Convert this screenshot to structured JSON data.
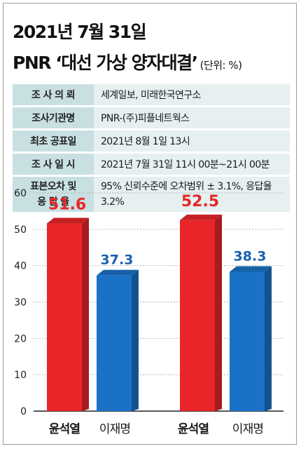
{
  "title": {
    "line1": "2021년 7월 31일",
    "line2": "PNR ‘대선 가상 양자대결’",
    "unit": "(단위: %)"
  },
  "info": [
    {
      "key": "조 사 의 뢰",
      "value": "세계일보, 미래한국연구소"
    },
    {
      "key": "조사기관명",
      "value": "PNR-(주)피플네트웍스"
    },
    {
      "key": "최초 공표일",
      "value": "2021년 8월 1일 13시"
    },
    {
      "key": "조 사 일 시",
      "value": "2021년 7월 31일 11시 00분~21시 00분"
    },
    {
      "key_line1": "표본오차 및",
      "key_line2": "응 답 율",
      "value_line1": "95% 신뢰수준에 오차범위 ± 3.1%,",
      "value_line2": "응답율 3.2%"
    }
  ],
  "chart_data": {
    "type": "bar",
    "categories": [
      "윤석열",
      "이재명",
      "윤석열",
      "이재명"
    ],
    "values": [
      51.6,
      37.3,
      52.5,
      38.3
    ],
    "value_labels": [
      "51.6",
      "37.3",
      "52.5",
      "38.3"
    ],
    "yticks": [
      "0",
      "10",
      "20",
      "30",
      "40",
      "50",
      "60"
    ],
    "ylim": [
      0,
      60
    ],
    "colors": {
      "윤석열": "#e8262a",
      "이재명": "#1a72c6"
    },
    "label_colors": {
      "윤석열": "#e8262a",
      "이재명": "#1a5fb0"
    }
  }
}
